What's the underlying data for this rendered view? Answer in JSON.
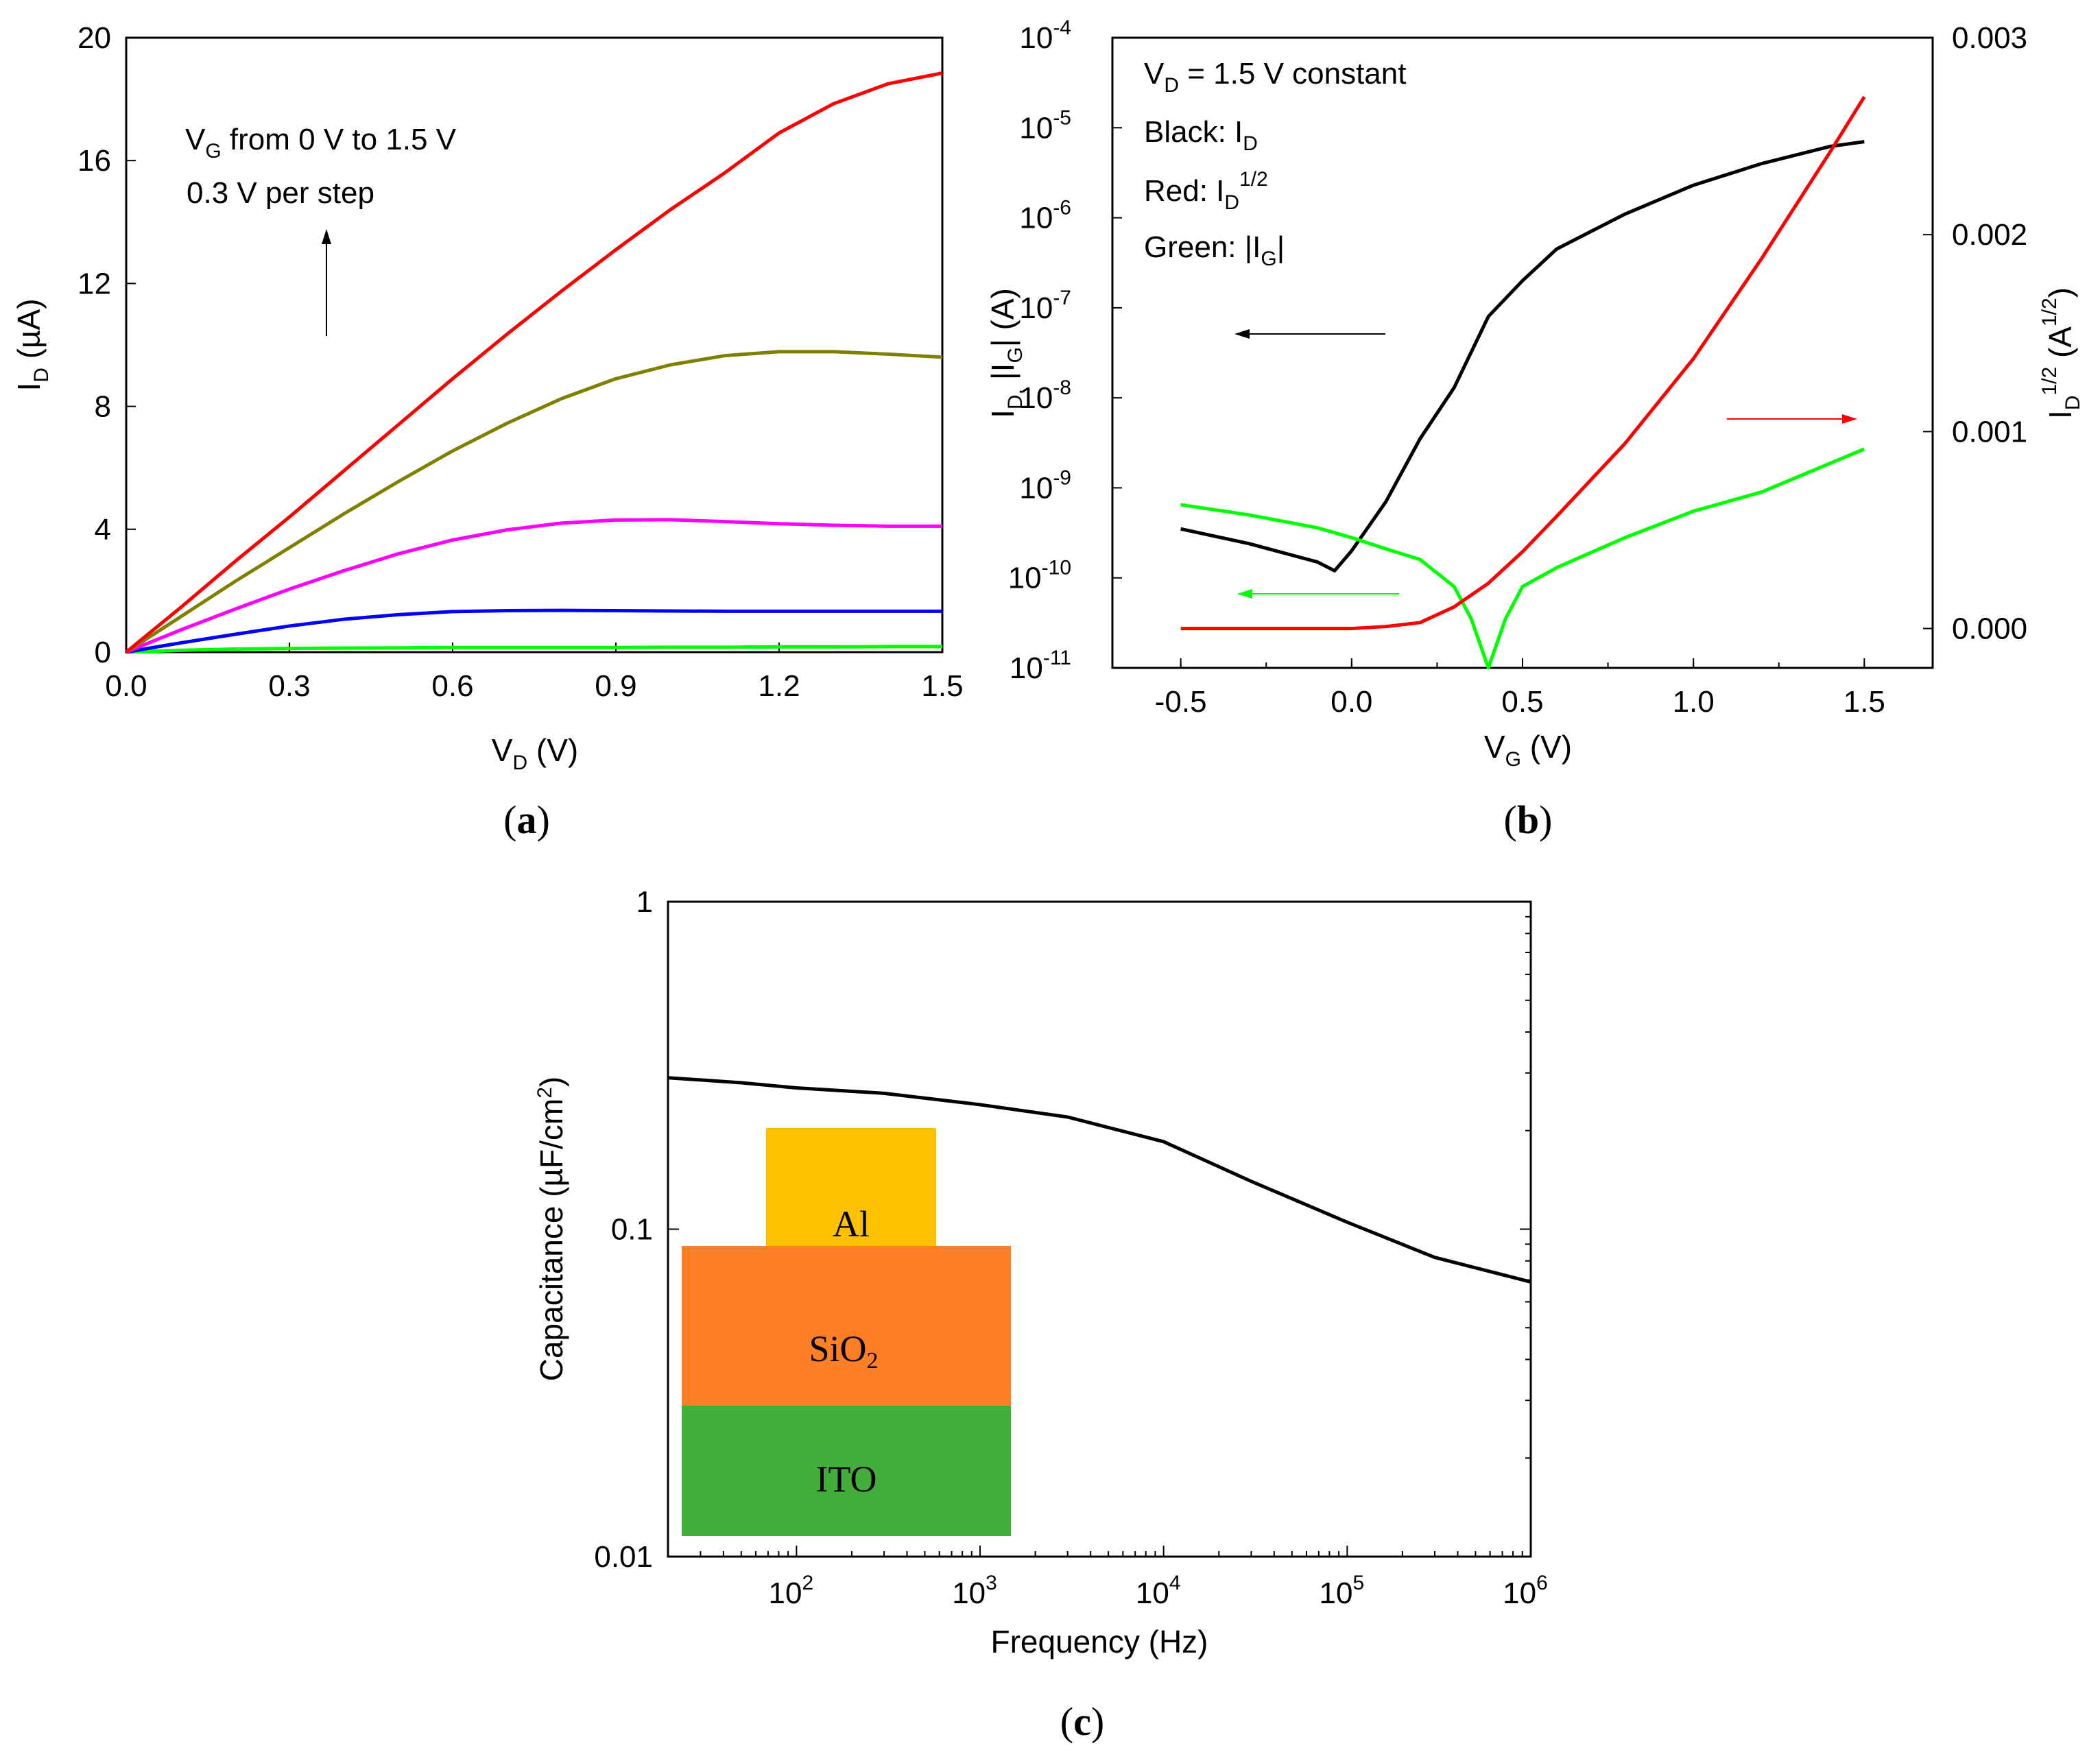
{
  "chart_data": [
    {
      "panel": "a",
      "panel_label": "a",
      "type": "line",
      "xlabel": "V",
      "xlabel_sub": "D",
      "xlabel_unit": " (V)",
      "ylabel": "I",
      "ylabel_sub": "D",
      "ylabel_unit": " (µA)",
      "xlim": [
        0,
        1.5
      ],
      "ylim": [
        0,
        20
      ],
      "xticks": [
        "0.0",
        "0.3",
        "0.6",
        "0.9",
        "1.2",
        "1.5"
      ],
      "yticks": [
        "0",
        "4",
        "8",
        "12",
        "16",
        "20"
      ],
      "annotation": {
        "line1_prefix": "V",
        "line1_sub": "G",
        "line1_rest": " from 0 V to 1.5 V",
        "line2": "0.3 V per step"
      },
      "x": [
        0,
        0.1,
        0.2,
        0.3,
        0.4,
        0.5,
        0.6,
        0.7,
        0.8,
        0.9,
        1.0,
        1.1,
        1.2,
        1.3,
        1.4,
        1.5
      ],
      "series": [
        {
          "color": "#00ff00",
          "values": [
            0,
            0.06,
            0.1,
            0.12,
            0.13,
            0.14,
            0.15,
            0.15,
            0.15,
            0.15,
            0.16,
            0.16,
            0.17,
            0.17,
            0.18,
            0.18
          ]
        },
        {
          "color": "#0000ff",
          "values": [
            0,
            0.3,
            0.58,
            0.85,
            1.07,
            1.22,
            1.32,
            1.35,
            1.36,
            1.35,
            1.34,
            1.33,
            1.33,
            1.33,
            1.33,
            1.33
          ]
        },
        {
          "color": "#ff00ff",
          "values": [
            0,
            0.72,
            1.4,
            2.05,
            2.65,
            3.2,
            3.65,
            3.98,
            4.2,
            4.3,
            4.31,
            4.25,
            4.18,
            4.13,
            4.1,
            4.1
          ]
        },
        {
          "color": "#808000",
          "values": [
            0,
            1.15,
            2.3,
            3.4,
            4.5,
            5.55,
            6.55,
            7.45,
            8.25,
            8.9,
            9.35,
            9.65,
            9.78,
            9.78,
            9.7,
            9.6
          ]
        },
        {
          "color": "#ff0000",
          "values": [
            0,
            1.45,
            2.95,
            4.4,
            5.9,
            7.4,
            8.9,
            10.35,
            11.75,
            13.1,
            14.4,
            15.6,
            16.9,
            17.85,
            18.5,
            18.85
          ]
        }
      ]
    },
    {
      "panel": "b",
      "panel_label": "b",
      "type": "line",
      "xlabel": "V",
      "xlabel_sub": "G",
      "xlabel_unit": " (V)",
      "ylabel_left": "I",
      "ylabel_left_sub1": "D,",
      "ylabel_left_mid": " |I",
      "ylabel_left_sub2": "G",
      "ylabel_left_unit": "| (A)",
      "ylabel_right": "I",
      "ylabel_right_sub": "D",
      "ylabel_right_sup": "1/2",
      "ylabel_right_unit": " (A",
      "ylabel_right_unit_sup": "1/2",
      "ylabel_right_unit_end": ")",
      "xlim": [
        -0.7,
        1.7
      ],
      "ylim_left_log10": [
        -11,
        -4
      ],
      "ylim_right": [
        -0.0002,
        0.003
      ],
      "xticks": [
        "-0.5",
        "0.0",
        "0.5",
        "1.0",
        "1.5"
      ],
      "yticks_left_base": "10",
      "yticks_left_exp": [
        "-11",
        "-10",
        "-9",
        "-8",
        "-7",
        "-6",
        "-5",
        "-4"
      ],
      "yticks_right": [
        "0.000",
        "0.001",
        "0.002",
        "0.003"
      ],
      "legend": {
        "l1_prefix": "V",
        "l1_sub": "D",
        "l1_rest": " = 1.5 V constant",
        "l2_prefix": "Black: I",
        "l2_sub": "D",
        "l3_prefix": "Red: I",
        "l3_sub": "D",
        "l3_sup": "1/2",
        "l4_prefix": "Green: |I",
        "l4_sub": "G",
        "l4_end": "|"
      },
      "series": [
        {
          "name": "I_D",
          "color": "#000000",
          "axis": "left",
          "x": [
            -0.5,
            -0.3,
            -0.1,
            -0.05,
            0.0,
            0.1,
            0.2,
            0.3,
            0.4,
            0.5,
            0.6,
            0.8,
            1.0,
            1.2,
            1.4,
            1.5
          ],
          "values": [
            3.5e-10,
            2.4e-10,
            1.5e-10,
            1.2e-10,
            2e-10,
            7e-10,
            3.5e-09,
            1.3e-08,
            8e-08,
            2e-07,
            4.5e-07,
            1.1e-06,
            2.3e-06,
            4e-06,
            6.2e-06,
            7e-06
          ]
        },
        {
          "name": "|I_G|",
          "color": "#00ff00",
          "axis": "left",
          "x": [
            -0.5,
            -0.3,
            -0.1,
            0.0,
            0.1,
            0.2,
            0.3,
            0.35,
            0.4,
            0.45,
            0.5,
            0.6,
            0.8,
            1.0,
            1.2,
            1.5
          ],
          "values": [
            6.5e-10,
            5e-10,
            3.6e-10,
            2.8e-10,
            2.1e-10,
            1.6e-10,
            8e-11,
            3.5e-11,
            1e-11,
            3.5e-11,
            8e-11,
            1.3e-10,
            2.8e-10,
            5.5e-10,
            9e-10,
            2.7e-09
          ]
        },
        {
          "name": "I_D^1/2",
          "color": "#ff0000",
          "axis": "right",
          "x": [
            -0.5,
            -0.2,
            0.0,
            0.1,
            0.2,
            0.3,
            0.4,
            0.5,
            0.6,
            0.8,
            1.0,
            1.2,
            1.4,
            1.5
          ],
          "values": [
            0.0,
            0.0,
            0.0,
            1e-05,
            3e-05,
            0.00011,
            0.00023,
            0.00039,
            0.00057,
            0.00094,
            0.00137,
            0.00188,
            0.00242,
            0.0027
          ]
        }
      ]
    },
    {
      "panel": "c",
      "panel_label": "c",
      "type": "line",
      "xlabel": "Frequency (Hz)",
      "ylabel": "Capacitance (µF/cm",
      "ylabel_sup": "2",
      "ylabel_end": ")",
      "xlim_log10": [
        1.3,
        6
      ],
      "ylim_log10": [
        -2,
        0
      ],
      "xticks_base": "10",
      "xticks_exp": [
        "2",
        "3",
        "4",
        "5",
        "6"
      ],
      "yticks": [
        "0.01",
        "0.1",
        "1"
      ],
      "inset_layers": [
        {
          "label": "Al",
          "color": "#ffc000"
        },
        {
          "label": "SiO",
          "sub": "2",
          "color": "#ff7f27"
        },
        {
          "label": "ITO",
          "color": "#43ae3a"
        }
      ],
      "series": [
        {
          "color": "#000000",
          "x": [
            20,
            50,
            100,
            300,
            1000,
            3000,
            10000,
            30000,
            100000,
            300000,
            1000000
          ],
          "values": [
            0.29,
            0.28,
            0.27,
            0.26,
            0.24,
            0.22,
            0.185,
            0.14,
            0.105,
            0.082,
            0.069
          ]
        }
      ]
    }
  ]
}
